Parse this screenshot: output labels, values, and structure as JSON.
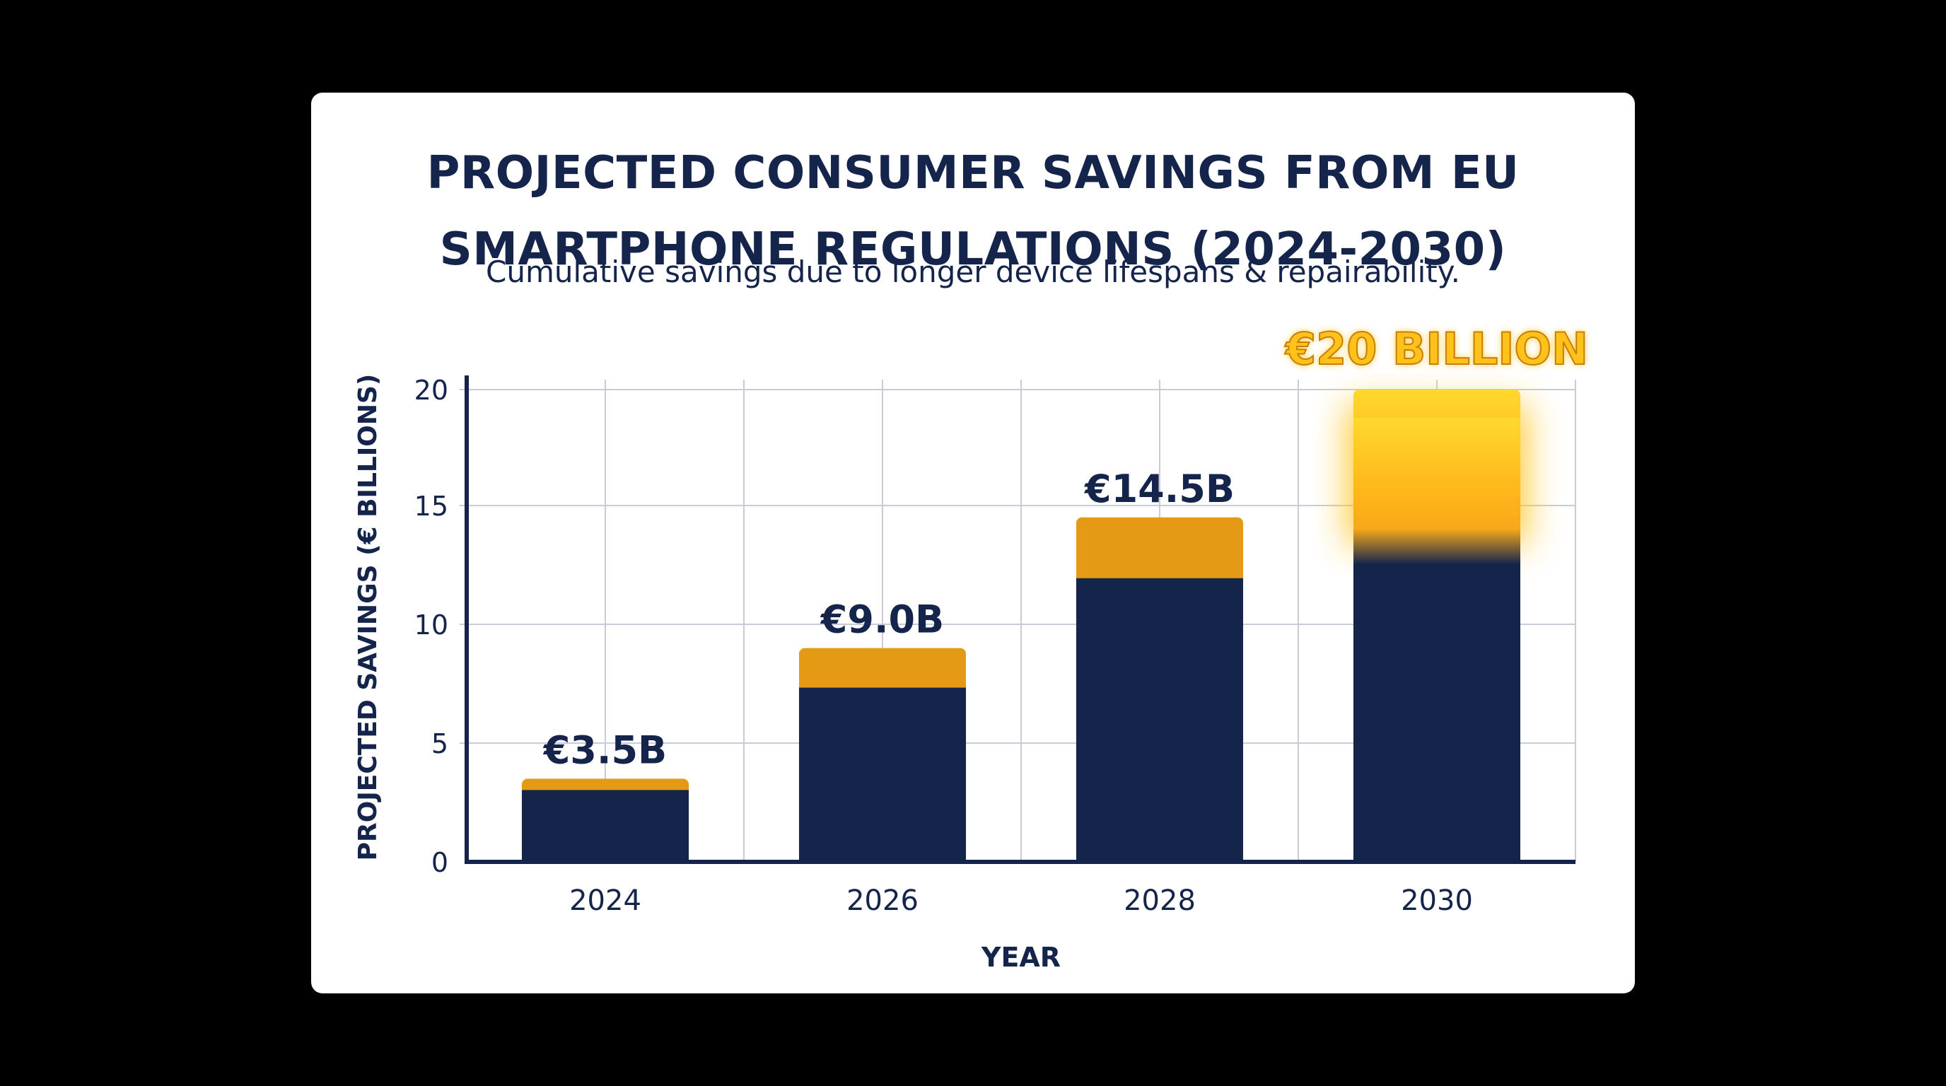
{
  "colors": {
    "background": "#000000",
    "card": "#ffffff",
    "navy": "#14244b",
    "gold": "#e59a15",
    "highlight_gold": "#ffc21a",
    "grid": "#c8ccd8"
  },
  "chart_data": {
    "type": "bar",
    "title": "PROJECTED CONSUMER SAVINGS FROM EU\nSMARTPHONE REGULATIONS (2024-2030)",
    "subtitle": "Cumulative savings due to longer device lifespans & repairability.",
    "xlabel": "YEAR",
    "ylabel": "PROJECTED SAVINGS (€ BILLIONS)",
    "categories": [
      "2024",
      "2026",
      "2028",
      "2030"
    ],
    "values": [
      3.5,
      9.0,
      14.5,
      20
    ],
    "data_labels": [
      "€3.5B",
      "€9.0B",
      "€14.5B",
      "€20 BILLION"
    ],
    "ylim": [
      0,
      20
    ],
    "yticks": [
      "0",
      "5",
      "10",
      "15",
      "20"
    ],
    "grid": true
  }
}
